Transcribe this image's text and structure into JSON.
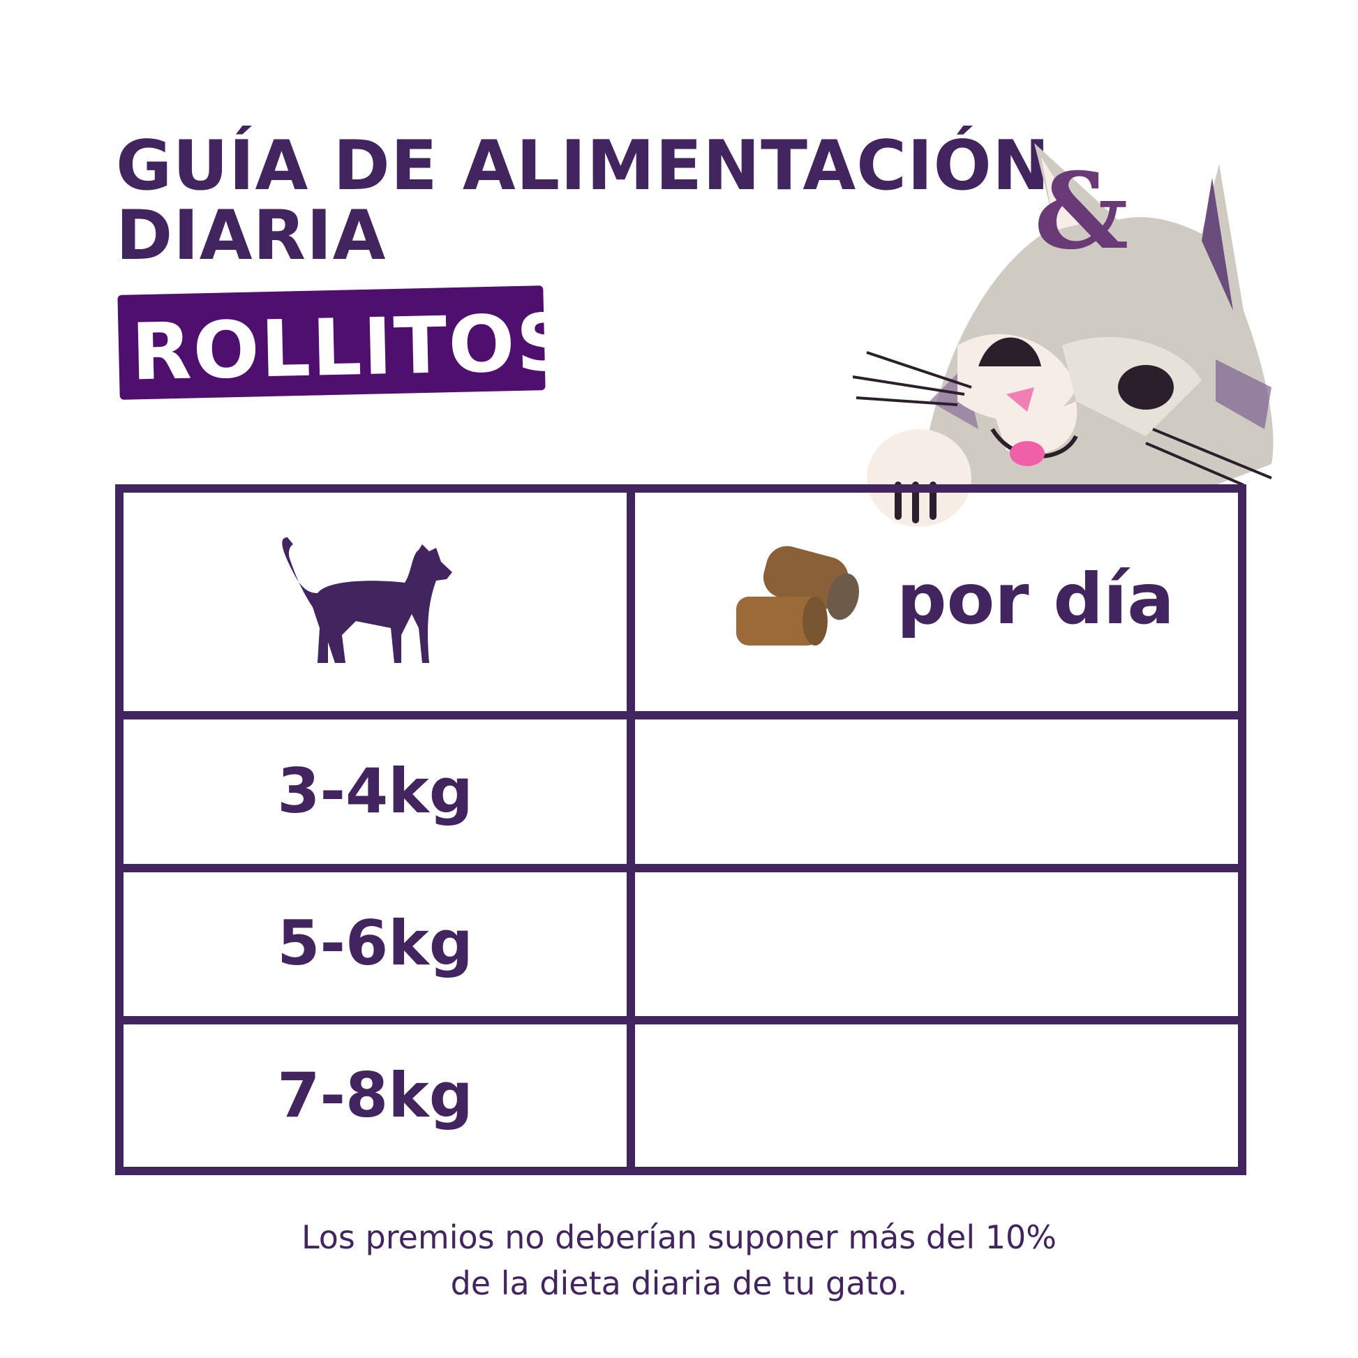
{
  "title": {
    "line1": "GUÍA DE ALIMENTACIÓN",
    "line2": "DIARIA"
  },
  "badge": {
    "label": "ROLLITOS",
    "color": "#4e0f6f"
  },
  "table": {
    "header": {
      "weight_icon": "cat-silhouette-icon",
      "amount_icon": "treat-rolls-icon",
      "amount_label": "por día"
    },
    "rows": [
      {
        "weight": "3-4kg",
        "amount": ""
      },
      {
        "weight": "5-6kg",
        "amount": ""
      },
      {
        "weight": "7-8kg",
        "amount": ""
      }
    ],
    "border_color": "#42245f"
  },
  "footer": {
    "line1": "Los premios no deberían suponer más del 10%",
    "line2": "de la dieta diaria de tu gato."
  },
  "illustration": {
    "logo_letter": "&"
  }
}
